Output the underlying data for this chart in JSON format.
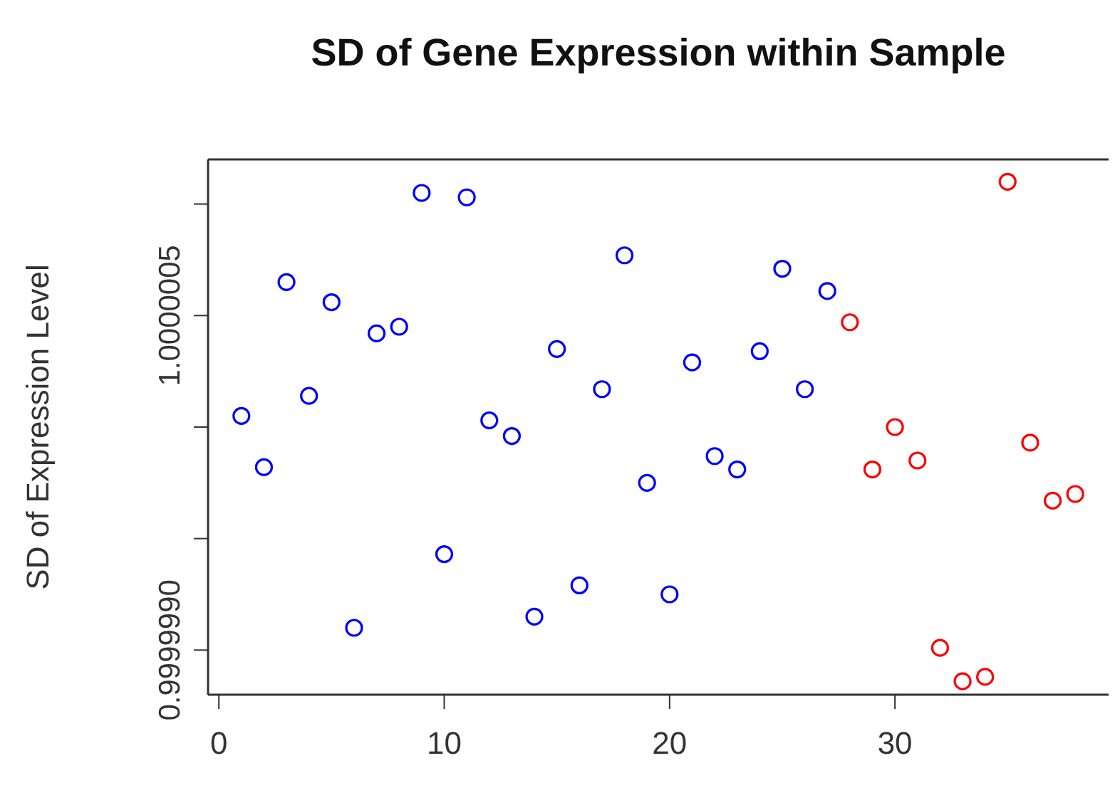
{
  "chart_data": {
    "type": "scatter",
    "title": "SD of Gene Expression within Sample",
    "ylabel": "SD of Expression Level",
    "marker": "circle",
    "xlim": [
      -0.48,
      39.48
    ],
    "xticks": [
      0,
      10,
      20,
      30
    ],
    "ylim": [
      0.9999988,
      1.0000012
    ],
    "yticks": [
      {
        "value": 0.999999,
        "label": "0.9999990"
      },
      {
        "value": 0.9999995,
        "label": null
      },
      {
        "value": 1.0,
        "label": null
      },
      {
        "value": 1.0000005,
        "label": "1.0000005"
      },
      {
        "value": 1.000001,
        "label": null
      }
    ],
    "series": [
      {
        "color": "#0000ff",
        "x": [
          1,
          2,
          3,
          4,
          5,
          6,
          7,
          8,
          9,
          10,
          11,
          12,
          13,
          14,
          15,
          16,
          17,
          18,
          19,
          20,
          21,
          22,
          23,
          24,
          25,
          26,
          27
        ],
        "values": [
          1.00000005,
          0.99999982,
          1.00000065,
          1.00000014,
          1.00000056,
          0.9999991,
          1.00000042,
          1.00000045,
          1.00000105,
          0.99999943,
          1.00000103,
          1.00000003,
          0.99999996,
          0.99999915,
          1.00000035,
          0.99999929,
          1.00000017,
          1.00000077,
          0.99999975,
          0.99999925,
          1.00000029,
          0.99999987,
          0.99999981,
          1.00000034,
          1.00000071,
          1.00000017,
          1.00000061
        ]
      },
      {
        "color": "#ff0000",
        "x": [
          28,
          29,
          30,
          31,
          32,
          33,
          34,
          35,
          36,
          37,
          38
        ],
        "values": [
          1.00000047,
          0.99999981,
          1.0,
          0.99999985,
          0.99999901,
          0.99999886,
          0.99999888,
          1.0000011,
          0.99999993,
          0.99999967,
          0.9999997
        ]
      }
    ]
  }
}
